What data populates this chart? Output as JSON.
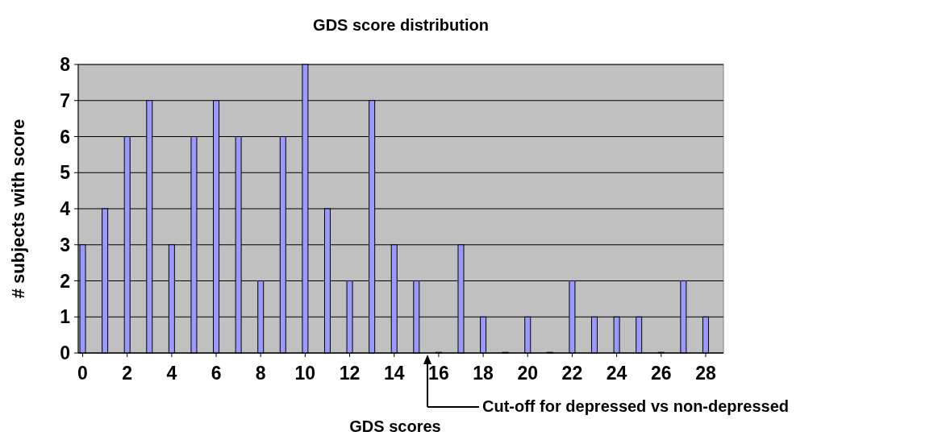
{
  "chart_data": {
    "type": "bar",
    "title": "GDS score distribution",
    "xlabel": "GDS scores",
    "ylabel": "# subjects with score",
    "x": [
      0,
      1,
      2,
      3,
      4,
      5,
      6,
      7,
      8,
      9,
      10,
      11,
      12,
      13,
      14,
      15,
      16,
      17,
      18,
      19,
      20,
      21,
      22,
      23,
      24,
      25,
      26,
      27,
      28
    ],
    "values": [
      3,
      4,
      6,
      7,
      3,
      6,
      7,
      6,
      2,
      6,
      8,
      4,
      2,
      7,
      3,
      2,
      0,
      3,
      1,
      0,
      1,
      0,
      2,
      1,
      1,
      1,
      0,
      2,
      1
    ],
    "color": "#9999ff",
    "xlim": [
      -0.2,
      28.8
    ],
    "xticks": [
      0,
      2,
      4,
      6,
      8,
      10,
      12,
      14,
      16,
      18,
      20,
      22,
      24,
      26,
      28
    ],
    "ylim": [
      0,
      8
    ],
    "yticks": [
      0,
      1,
      2,
      3,
      4,
      5,
      6,
      7,
      8
    ],
    "grid": "y",
    "annotations": [
      "Cut-off for depressed vs non-depressed"
    ]
  }
}
